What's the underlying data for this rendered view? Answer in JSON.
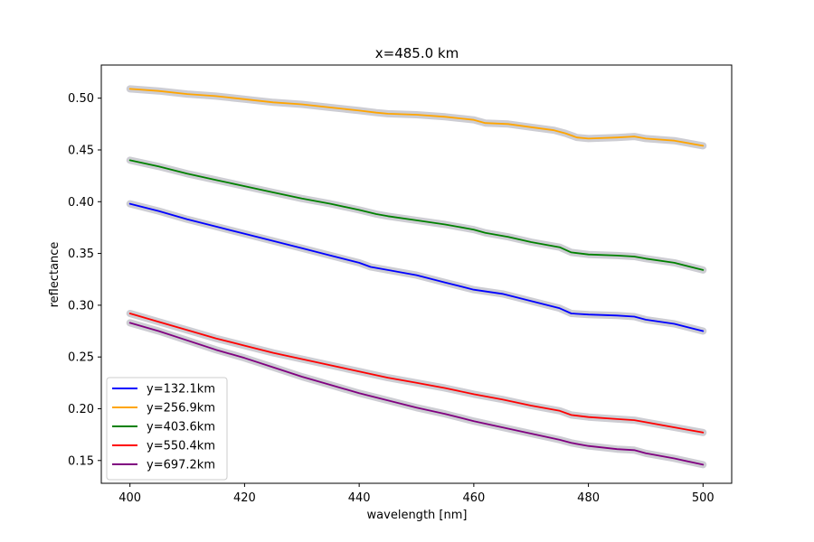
{
  "chart_data": {
    "type": "line",
    "title": "x=485.0 km",
    "xlabel": "wavelength [nm]",
    "ylabel": "reflectance",
    "xlim": [
      395,
      505
    ],
    "ylim": [
      0.128,
      0.532
    ],
    "xticks": [
      400,
      420,
      440,
      460,
      480,
      500
    ],
    "yticks": [
      0.15,
      0.2,
      0.25,
      0.3,
      0.35,
      0.4,
      0.45,
      0.5
    ],
    "ytick_labels": [
      "0.15",
      "0.20",
      "0.25",
      "0.30",
      "0.35",
      "0.40",
      "0.45",
      "0.50"
    ],
    "grid": false,
    "legend_position": "lower-left",
    "uncertainty_band_color": "#c0c0c8",
    "series": [
      {
        "name": "y=132.1km",
        "color": "#0000ff",
        "x": [
          400,
          405,
          410,
          415,
          420,
          425,
          430,
          435,
          440,
          442,
          445,
          450,
          455,
          460,
          465,
          470,
          475,
          477,
          480,
          485,
          488,
          490,
          495,
          500
        ],
        "y": [
          0.398,
          0.391,
          0.383,
          0.376,
          0.369,
          0.362,
          0.355,
          0.348,
          0.341,
          0.337,
          0.334,
          0.329,
          0.322,
          0.315,
          0.311,
          0.304,
          0.297,
          0.292,
          0.291,
          0.29,
          0.289,
          0.286,
          0.282,
          0.275
        ]
      },
      {
        "name": "y=256.9km",
        "color": "#ffa500",
        "x": [
          400,
          405,
          410,
          415,
          420,
          425,
          430,
          435,
          440,
          443,
          445,
          450,
          455,
          460,
          462,
          466,
          470,
          474,
          476,
          478,
          480,
          485,
          488,
          490,
          495,
          500
        ],
        "y": [
          0.509,
          0.507,
          0.504,
          0.502,
          0.499,
          0.496,
          0.494,
          0.491,
          0.488,
          0.486,
          0.485,
          0.484,
          0.482,
          0.479,
          0.476,
          0.475,
          0.472,
          0.469,
          0.466,
          0.462,
          0.461,
          0.462,
          0.463,
          0.461,
          0.459,
          0.454
        ]
      },
      {
        "name": "y=403.6km",
        "color": "#008000",
        "x": [
          400,
          405,
          410,
          415,
          420,
          425,
          430,
          435,
          440,
          443,
          445,
          450,
          455,
          460,
          462,
          466,
          470,
          475,
          477,
          480,
          485,
          488,
          490,
          495,
          500
        ],
        "y": [
          0.44,
          0.434,
          0.427,
          0.421,
          0.415,
          0.409,
          0.403,
          0.398,
          0.392,
          0.388,
          0.386,
          0.382,
          0.378,
          0.373,
          0.37,
          0.366,
          0.361,
          0.356,
          0.351,
          0.349,
          0.348,
          0.347,
          0.345,
          0.341,
          0.334
        ]
      },
      {
        "name": "y=550.4km",
        "color": "#ff0000",
        "x": [
          400,
          405,
          410,
          415,
          420,
          425,
          430,
          435,
          440,
          445,
          450,
          455,
          460,
          465,
          470,
          475,
          477,
          480,
          485,
          488,
          490,
          495,
          500
        ],
        "y": [
          0.292,
          0.284,
          0.276,
          0.268,
          0.261,
          0.254,
          0.248,
          0.242,
          0.236,
          0.23,
          0.225,
          0.22,
          0.214,
          0.209,
          0.203,
          0.198,
          0.194,
          0.192,
          0.19,
          0.189,
          0.187,
          0.182,
          0.177
        ]
      },
      {
        "name": "y=697.2km",
        "color": "#800080",
        "x": [
          400,
          405,
          410,
          415,
          420,
          425,
          430,
          435,
          440,
          445,
          450,
          455,
          460,
          465,
          470,
          475,
          477,
          480,
          485,
          488,
          490,
          495,
          500
        ],
        "y": [
          0.283,
          0.275,
          0.266,
          0.257,
          0.249,
          0.24,
          0.231,
          0.223,
          0.215,
          0.208,
          0.201,
          0.195,
          0.188,
          0.182,
          0.176,
          0.17,
          0.167,
          0.164,
          0.161,
          0.16,
          0.157,
          0.152,
          0.146
        ]
      }
    ]
  }
}
